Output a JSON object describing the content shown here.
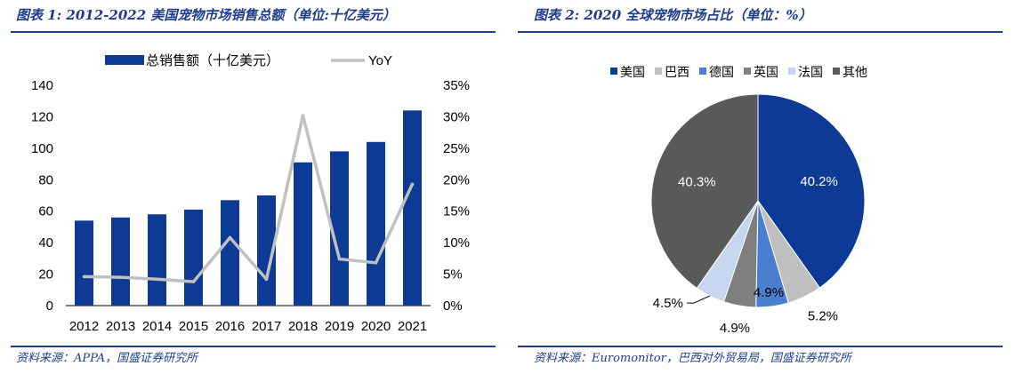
{
  "left": {
    "title": "图表 1:  2012-2022 美国宠物市场销售总额（单位:十亿美元）",
    "source": "资料来源：APPA，国盛证券研究所",
    "chart_data": {
      "type": "bar",
      "categories": [
        "2012",
        "2013",
        "2014",
        "2015",
        "2016",
        "2017",
        "2018",
        "2019",
        "2020",
        "2021"
      ],
      "series": [
        {
          "name": "总销售额（十亿美元）",
          "type": "bar",
          "axis": "left",
          "values": [
            54,
            56,
            58,
            61,
            67,
            70,
            91,
            98,
            104,
            124
          ],
          "color": "#0d3a94"
        },
        {
          "name": "YoY",
          "type": "line",
          "axis": "right",
          "values": [
            4.6,
            4.5,
            4.2,
            3.8,
            10.8,
            4.2,
            30.2,
            7.4,
            6.8,
            19.3
          ],
          "color": "#c0c0c0"
        }
      ],
      "yticks_left": [
        "0",
        "20",
        "40",
        "60",
        "80",
        "100",
        "120",
        "140"
      ],
      "yticks_right": [
        "0%",
        "5%",
        "10%",
        "15%",
        "20%",
        "25%",
        "30%",
        "35%"
      ],
      "ylim_left": [
        0,
        140
      ],
      "ylim_right": [
        0,
        35
      ],
      "legend_position": "top"
    }
  },
  "right": {
    "title": "图表 2:  2020 全球宠物市场占比（单位：%）",
    "source": "资料来源：Euromonitor，巴西对外贸易局，国盛证券研究所",
    "chart_data": {
      "type": "pie",
      "slices": [
        {
          "name": "美国",
          "value": 40.2,
          "label": "40.2%",
          "color": "#0d3a94"
        },
        {
          "name": "巴西",
          "value": 5.2,
          "label": "5.2%",
          "color": "#bfbfbf"
        },
        {
          "name": "德国",
          "value": 4.9,
          "label": "4.9%",
          "color": "#4a7fcf"
        },
        {
          "name": "英国",
          "value": 4.9,
          "label": "4.9%",
          "color": "#7f7f7f"
        },
        {
          "name": "法国",
          "value": 4.5,
          "label": "4.5%",
          "color": "#c5d6ee"
        },
        {
          "name": "其他",
          "value": 40.3,
          "label": "40.3%",
          "color": "#595959"
        }
      ],
      "legend_position": "top"
    }
  }
}
